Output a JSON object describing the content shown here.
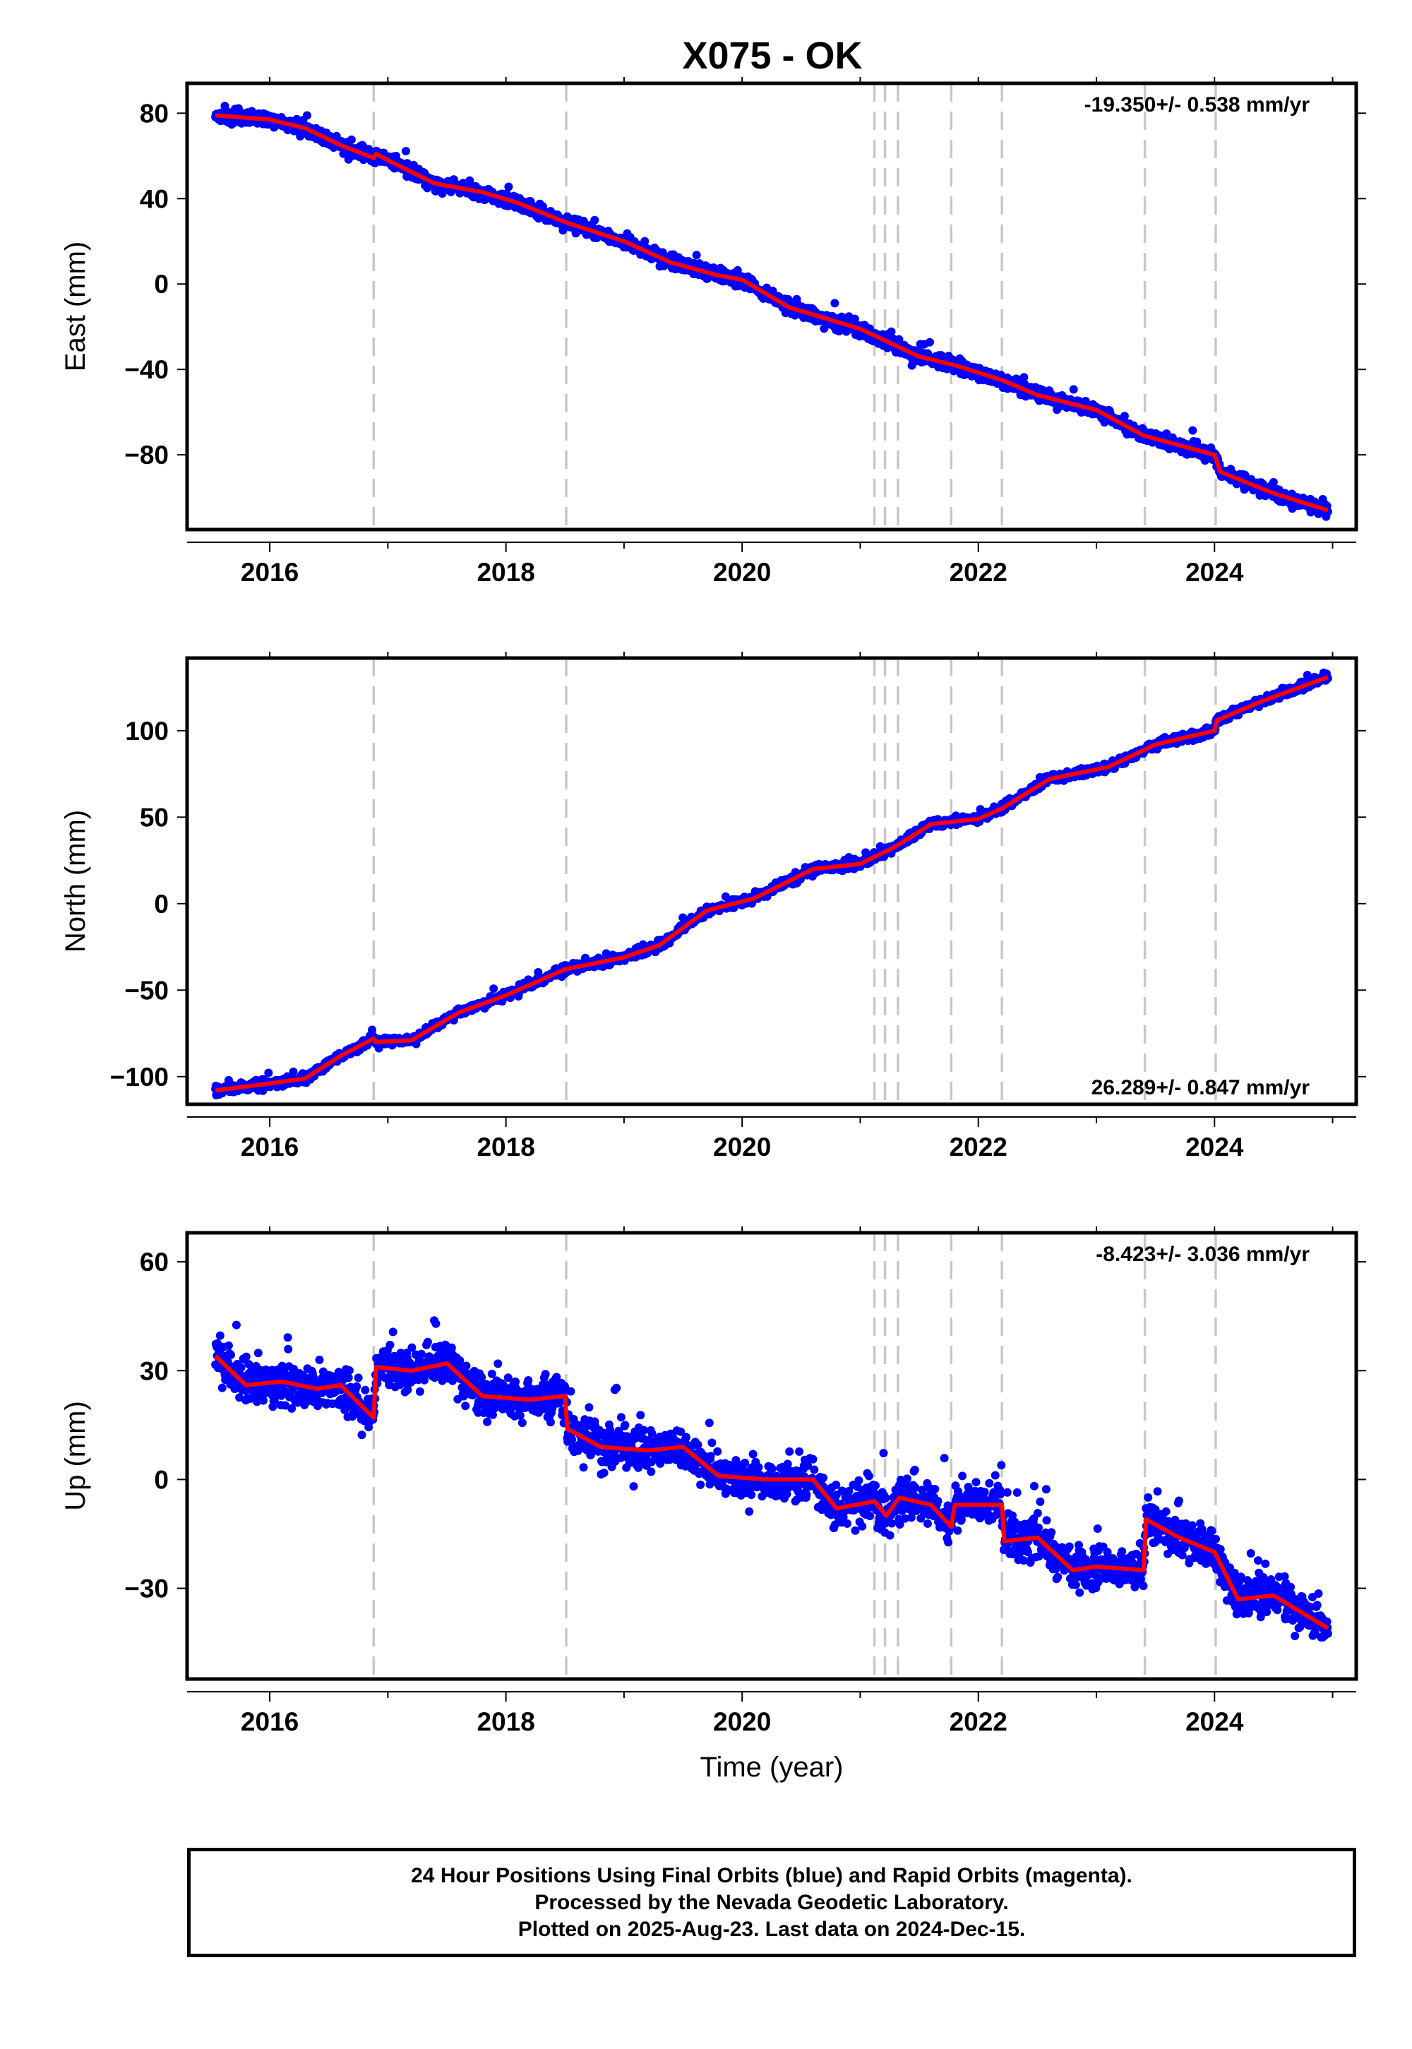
{
  "title": "X075 - OK",
  "chart_data": [
    {
      "type": "scatter",
      "name": "east",
      "ylabel": "East (mm)",
      "xlabel": "",
      "rate": "-19.350+/- 0.538 mm/yr",
      "rate_position": "top-right",
      "xlim": [
        2015.3,
        2025.2
      ],
      "ylim": [
        -115,
        94
      ],
      "xticks": [
        2016,
        2018,
        2020,
        2022,
        2024
      ],
      "xtick_labels": [
        "2016",
        "2018",
        "2020",
        "2022",
        "2024"
      ],
      "yticks": [
        80,
        40,
        0,
        -40,
        -80
      ],
      "ytick_labels": [
        "80",
        "40",
        "0",
        "−40",
        "−80"
      ],
      "noise": 4,
      "model": [
        [
          2015.54,
          79
        ],
        [
          2016.0,
          77
        ],
        [
          2016.3,
          73
        ],
        [
          2016.6,
          65
        ],
        [
          2016.88,
          59
        ],
        [
          2016.9,
          61
        ],
        [
          2017.0,
          58
        ],
        [
          2017.4,
          47
        ],
        [
          2017.8,
          43
        ],
        [
          2018.1,
          38
        ],
        [
          2018.5,
          29
        ],
        [
          2019.0,
          20
        ],
        [
          2019.4,
          10
        ],
        [
          2019.8,
          4
        ],
        [
          2020.0,
          2
        ],
        [
          2020.4,
          -11
        ],
        [
          2021.0,
          -21
        ],
        [
          2021.5,
          -34
        ],
        [
          2021.8,
          -38
        ],
        [
          2022.2,
          -45
        ],
        [
          2022.5,
          -52
        ],
        [
          2023.0,
          -59
        ],
        [
          2023.4,
          -71
        ],
        [
          2024.0,
          -80
        ],
        [
          2024.05,
          -88
        ],
        [
          2024.5,
          -98
        ],
        [
          2024.96,
          -106
        ]
      ],
      "steps": [
        2016.88,
        2018.51,
        2021.12,
        2021.21,
        2021.32,
        2021.77,
        2022.2,
        2023.41,
        2024.01
      ]
    },
    {
      "type": "scatter",
      "name": "north",
      "ylabel": "North (mm)",
      "xlabel": "",
      "rate": "26.289+/- 0.847 mm/yr",
      "rate_position": "bottom-right",
      "xlim": [
        2015.3,
        2025.2
      ],
      "ylim": [
        -116,
        142
      ],
      "xticks": [
        2016,
        2018,
        2020,
        2022,
        2024
      ],
      "xtick_labels": [
        "2016",
        "2018",
        "2020",
        "2022",
        "2024"
      ],
      "yticks": [
        100,
        50,
        0,
        -50,
        -100
      ],
      "ytick_labels": [
        "100",
        "50",
        "0",
        "−50",
        "−100"
      ],
      "noise": 3,
      "model": [
        [
          2015.54,
          -108
        ],
        [
          2016.0,
          -104
        ],
        [
          2016.3,
          -101
        ],
        [
          2016.6,
          -88
        ],
        [
          2016.88,
          -78
        ],
        [
          2016.9,
          -80
        ],
        [
          2017.2,
          -79
        ],
        [
          2017.6,
          -63
        ],
        [
          2018.0,
          -53
        ],
        [
          2018.5,
          -38
        ],
        [
          2019.0,
          -31
        ],
        [
          2019.3,
          -24
        ],
        [
          2019.7,
          -4
        ],
        [
          2020.1,
          3
        ],
        [
          2020.6,
          20
        ],
        [
          2021.0,
          23
        ],
        [
          2021.3,
          33
        ],
        [
          2021.6,
          46
        ],
        [
          2022.0,
          49
        ],
        [
          2022.2,
          55
        ],
        [
          2022.6,
          72
        ],
        [
          2023.1,
          79
        ],
        [
          2023.5,
          92
        ],
        [
          2024.0,
          100
        ],
        [
          2024.02,
          106
        ],
        [
          2024.4,
          117
        ],
        [
          2024.96,
          131
        ]
      ],
      "steps": [
        2016.88,
        2018.51,
        2021.12,
        2021.21,
        2021.32,
        2021.77,
        2022.2,
        2023.41,
        2024.01
      ]
    },
    {
      "type": "scatter",
      "name": "up",
      "ylabel": "Up (mm)",
      "xlabel": "Time (year)",
      "rate": "-8.423+/- 3.036 mm/yr",
      "rate_position": "top-right",
      "xlim": [
        2015.3,
        2025.2
      ],
      "ylim": [
        -55,
        68
      ],
      "xticks": [
        2016,
        2018,
        2020,
        2022,
        2024
      ],
      "xtick_labels": [
        "2016",
        "2018",
        "2020",
        "2022",
        "2024"
      ],
      "yticks": [
        60,
        30,
        0,
        -30
      ],
      "ytick_labels": [
        "60",
        "30",
        "0",
        "−30"
      ],
      "noise": 7,
      "model": [
        [
          2015.54,
          34
        ],
        [
          2015.8,
          26
        ],
        [
          2016.1,
          27
        ],
        [
          2016.4,
          25
        ],
        [
          2016.6,
          26
        ],
        [
          2016.88,
          17
        ],
        [
          2016.9,
          31
        ],
        [
          2017.2,
          30
        ],
        [
          2017.5,
          32
        ],
        [
          2017.8,
          23
        ],
        [
          2018.2,
          22
        ],
        [
          2018.5,
          23
        ],
        [
          2018.52,
          14
        ],
        [
          2018.8,
          9
        ],
        [
          2019.2,
          8
        ],
        [
          2019.5,
          9
        ],
        [
          2019.8,
          1
        ],
        [
          2020.2,
          0
        ],
        [
          2020.6,
          0
        ],
        [
          2020.8,
          -8
        ],
        [
          2021.12,
          -6
        ],
        [
          2021.22,
          -10
        ],
        [
          2021.33,
          -5
        ],
        [
          2021.6,
          -7
        ],
        [
          2021.77,
          -13
        ],
        [
          2021.8,
          -7
        ],
        [
          2022.2,
          -7
        ],
        [
          2022.22,
          -17
        ],
        [
          2022.5,
          -16
        ],
        [
          2022.8,
          -25
        ],
        [
          2023.0,
          -24
        ],
        [
          2023.4,
          -25
        ],
        [
          2023.42,
          -11
        ],
        [
          2023.7,
          -16
        ],
        [
          2024.0,
          -20
        ],
        [
          2024.2,
          -33
        ],
        [
          2024.5,
          -32
        ],
        [
          2024.96,
          -41
        ]
      ],
      "steps": [
        2016.88,
        2018.51,
        2021.12,
        2021.21,
        2021.32,
        2021.77,
        2022.2,
        2023.41,
        2024.01
      ]
    }
  ],
  "colors": {
    "points": "#0000ff",
    "model": "#ff0000",
    "steps": "#c8c8c8",
    "frame": "#000000"
  },
  "footer": {
    "line1": "24 Hour Positions Using Final Orbits (blue) and Rapid Orbits (magenta).",
    "line2": "Processed by the Nevada Geodetic Laboratory.",
    "line3": "Plotted on 2025-Aug-23. Last data on 2024-Dec-15."
  }
}
